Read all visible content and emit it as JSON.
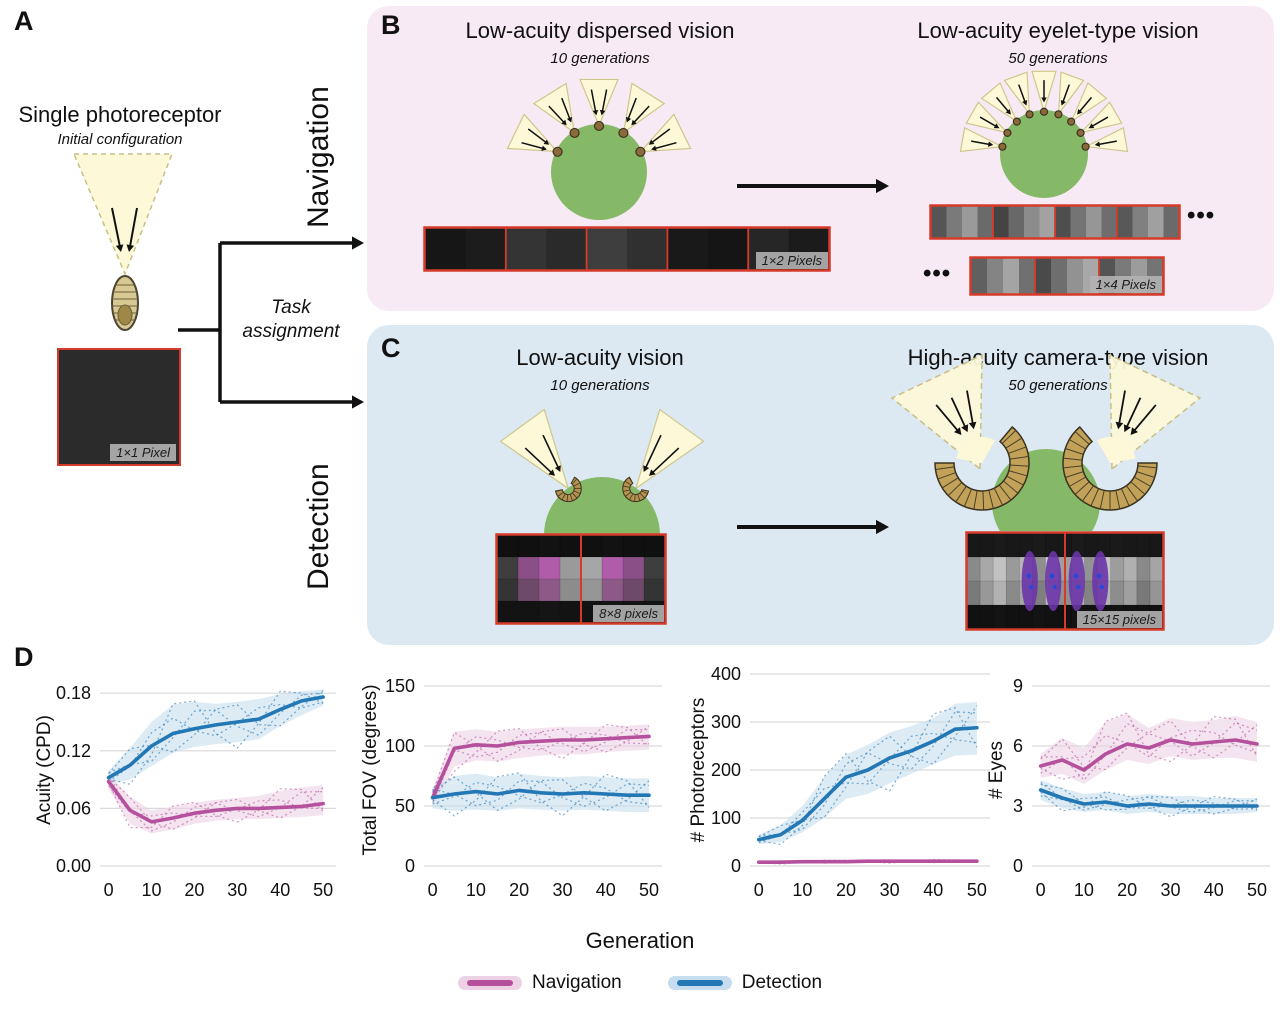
{
  "colors": {
    "navigation": "#b5519c",
    "navigation_band": "#ecd2e4",
    "detection": "#2277b4",
    "detection_band": "#c6ddef",
    "panel_b_bg": "#f8eaf4",
    "panel_c_bg": "#dce9f2",
    "organism_green": "#85b968",
    "light_cone": "#fcf8d8",
    "pixel_border_red": "#d63a2a",
    "grid_line": "#d9d9d9"
  },
  "panels": {
    "a": {
      "letter": "A",
      "title": "Single photoreceptor",
      "subtitle": "Initial configuration",
      "pixel_label": "1×1 Pixel",
      "task_label": "Task assignment"
    },
    "b": {
      "letter": "B",
      "side_label": "Navigation",
      "left": {
        "title": "Low-acuity dispersed vision",
        "subtitle": "10 generations",
        "strip": {
          "group": 2,
          "label": "1×2 Pixels",
          "cells": [
            "#161616",
            "#1c1c1c",
            "#343434",
            "#2a2a2a",
            "#3e3e3e",
            "#303030",
            "#191919",
            "#151515",
            "#262626",
            "#1b1b1b"
          ]
        }
      },
      "right": {
        "title": "Low-acuity eyelet-type vision",
        "subtitle": "50 generations",
        "ellipsis": "•••",
        "strip1": {
          "group": 4,
          "cells": [
            "#555555",
            "#7a7a7a",
            "#9a9a9a",
            "#6a6a6a",
            "#444444",
            "#686868",
            "#8c8c8c",
            "#a2a2a2",
            "#4e4e4e",
            "#747474",
            "#969696",
            "#6e6e6e",
            "#585858",
            "#808080",
            "#a0a0a0",
            "#6a6a6a"
          ]
        },
        "strip2": {
          "group": 4,
          "label": "1×4 Pixels",
          "cells": [
            "#606060",
            "#848484",
            "#a4a4a4",
            "#707070",
            "#4a4a4a",
            "#6e6e6e",
            "#929292",
            "#a8a8a8",
            "#545454",
            "#7a7a7a",
            "#9c9c9c",
            "#747474"
          ]
        }
      }
    },
    "c": {
      "letter": "C",
      "side_label": "Detection",
      "left": {
        "title": "Low-acuity vision",
        "subtitle": "10 generations",
        "pixels": {
          "label": "8×8 pixels",
          "rows": [
            [
              "#101010",
              "#101010",
              "#121212",
              "#101010",
              "#101010",
              "#121212",
              "#101010",
              "#101010"
            ],
            [
              "#3e3e3e",
              "#8a4f86",
              "#b05ca8",
              "#9a9a9a",
              "#a6a6a6",
              "#b05ca8",
              "#8a4f86",
              "#3e3e3e"
            ],
            [
              "#343434",
              "#6e4a6a",
              "#8d5a88",
              "#8c8c8c",
              "#969696",
              "#8d5a88",
              "#6e4a6a",
              "#343434"
            ],
            [
              "#131313",
              "#131313",
              "#151515",
              "#131313",
              "#131313",
              "#151515",
              "#131313",
              "#131313"
            ]
          ]
        }
      },
      "right": {
        "title": "High-acuity camera-type vision",
        "subtitle": "50 generations",
        "pixels": {
          "label": "15×15 pixels",
          "blob_fracs": [
            0.32,
            0.44,
            0.56,
            0.68
          ],
          "rows": [
            [
              "#181818",
              "#181818",
              "#1a1a1a",
              "#181818",
              "#181818",
              "#1a1a1a",
              "#181818",
              "#181818",
              "#1a1a1a",
              "#181818",
              "#181818",
              "#1a1a1a",
              "#181818",
              "#181818",
              "#181818"
            ],
            [
              "#8a8a8a",
              "#a8a8a8",
              "#c2c2c2",
              "#9a9a9a",
              "#b5b5b5",
              "#8f8f8f",
              "#c8c8c8",
              "#a0a0a0",
              "#bdbdbd",
              "#939393",
              "#c4c4c4",
              "#9d9d9d",
              "#b0b0b0",
              "#898989",
              "#a5a5a5"
            ],
            [
              "#7a7a7a",
              "#989898",
              "#b2b2b2",
              "#8a8a8a",
              "#a5a5a5",
              "#7f7f7f",
              "#b8b8b8",
              "#909090",
              "#adadad",
              "#838383",
              "#b4b4b4",
              "#8d8d8d",
              "#a0a0a0",
              "#797979",
              "#959595"
            ],
            [
              "#111111",
              "#111111",
              "#131313",
              "#111111",
              "#111111",
              "#131313",
              "#111111",
              "#111111",
              "#131313",
              "#111111",
              "#111111",
              "#131313",
              "#111111",
              "#111111",
              "#111111"
            ]
          ]
        }
      }
    },
    "d": {
      "letter": "D",
      "xlabel": "Generation"
    }
  },
  "legend": [
    {
      "label": "Navigation",
      "color_key": "navigation"
    },
    {
      "label": "Detection",
      "color_key": "detection"
    }
  ],
  "chart_data": [
    {
      "type": "line",
      "ylabel": "Acuity (CPD)",
      "x": [
        0,
        5,
        10,
        15,
        20,
        25,
        30,
        35,
        40,
        45,
        50
      ],
      "xticks": [
        0,
        10,
        20,
        30,
        40,
        50
      ],
      "xlim": [
        -2,
        53
      ],
      "ylim": [
        0,
        0.2
      ],
      "ytick_vals": [
        0,
        0.06,
        0.12,
        0.18
      ],
      "ytick_labels": [
        "0.00",
        "0.06",
        "0.12",
        "0.18"
      ],
      "series": [
        {
          "name": "Navigation",
          "color_key": "navigation",
          "values": [
            0.088,
            0.058,
            0.046,
            0.05,
            0.055,
            0.058,
            0.06,
            0.06,
            0.061,
            0.062,
            0.065
          ],
          "band_low": [
            0.08,
            0.044,
            0.034,
            0.038,
            0.044,
            0.047,
            0.049,
            0.049,
            0.05,
            0.051,
            0.053
          ],
          "band_high": [
            0.096,
            0.072,
            0.058,
            0.062,
            0.066,
            0.069,
            0.071,
            0.073,
            0.078,
            0.082,
            0.084
          ]
        },
        {
          "name": "Detection",
          "color_key": "detection",
          "values": [
            0.092,
            0.105,
            0.125,
            0.138,
            0.143,
            0.147,
            0.15,
            0.153,
            0.163,
            0.172,
            0.176
          ],
          "band_low": [
            0.085,
            0.09,
            0.104,
            0.118,
            0.124,
            0.127,
            0.129,
            0.132,
            0.146,
            0.157,
            0.167
          ],
          "band_high": [
            0.099,
            0.123,
            0.15,
            0.168,
            0.171,
            0.169,
            0.171,
            0.174,
            0.179,
            0.182,
            0.184
          ]
        }
      ]
    },
    {
      "type": "line",
      "ylabel": "Total FOV (degrees)",
      "x": [
        0,
        5,
        10,
        15,
        20,
        25,
        30,
        35,
        40,
        45,
        50
      ],
      "xticks": [
        0,
        10,
        20,
        30,
        40,
        50
      ],
      "xlim": [
        -2,
        53
      ],
      "ylim": [
        0,
        160
      ],
      "ytick_vals": [
        0,
        50,
        100,
        150
      ],
      "ytick_labels": [
        "0",
        "50",
        "100",
        "150"
      ],
      "series": [
        {
          "name": "Navigation",
          "color_key": "navigation",
          "values": [
            57,
            98,
            101,
            100,
            103,
            104,
            105,
            105,
            106,
            107,
            108
          ],
          "band_low": [
            50,
            83,
            88,
            87,
            90,
            92,
            93,
            93,
            95,
            96,
            97
          ],
          "band_high": [
            64,
            112,
            114,
            112,
            114,
            115,
            116,
            116,
            116,
            117,
            118
          ]
        },
        {
          "name": "Detection",
          "color_key": "detection",
          "values": [
            57,
            60,
            62,
            60,
            63,
            61,
            60,
            61,
            60,
            59,
            59
          ],
          "band_low": [
            48,
            46,
            47,
            46,
            48,
            47,
            46,
            47,
            46,
            45,
            45
          ],
          "band_high": [
            66,
            75,
            77,
            74,
            77,
            75,
            74,
            75,
            74,
            73,
            73
          ]
        }
      ]
    },
    {
      "type": "line",
      "ylabel": "# Photoreceptors",
      "x": [
        0,
        5,
        10,
        15,
        20,
        25,
        30,
        35,
        40,
        45,
        50
      ],
      "xticks": [
        0,
        10,
        20,
        30,
        40,
        50
      ],
      "xlim": [
        -2,
        53
      ],
      "ylim": [
        0,
        400
      ],
      "ytick_vals": [
        0,
        100,
        200,
        300,
        400
      ],
      "ytick_labels": [
        "0",
        "100",
        "200",
        "300",
        "400"
      ],
      "series": [
        {
          "name": "Detection",
          "color_key": "detection",
          "values": [
            55,
            65,
            95,
            140,
            185,
            200,
            225,
            240,
            260,
            285,
            288
          ],
          "band_low": [
            45,
            50,
            70,
            100,
            140,
            150,
            172,
            192,
            212,
            230,
            232
          ],
          "band_high": [
            65,
            85,
            125,
            185,
            232,
            252,
            278,
            292,
            308,
            338,
            342
          ]
        },
        {
          "name": "Navigation",
          "color_key": "navigation",
          "values": [
            8,
            8,
            9,
            9,
            9,
            10,
            10,
            10,
            10,
            10,
            10
          ],
          "band_low": [
            5,
            5,
            6,
            6,
            6,
            7,
            7,
            7,
            7,
            7,
            7
          ],
          "band_high": [
            11,
            11,
            12,
            12,
            12,
            13,
            13,
            13,
            13,
            13,
            13
          ]
        }
      ]
    },
    {
      "type": "line",
      "ylabel": "# Eyes",
      "x": [
        0,
        5,
        10,
        15,
        20,
        25,
        30,
        35,
        40,
        45,
        50
      ],
      "xticks": [
        0,
        10,
        20,
        30,
        40,
        50
      ],
      "xlim": [
        -2,
        53
      ],
      "ylim": [
        0,
        9.6
      ],
      "ytick_vals": [
        0,
        3,
        6,
        9
      ],
      "ytick_labels": [
        "0",
        "3",
        "6",
        "9"
      ],
      "series": [
        {
          "name": "Navigation",
          "color_key": "navigation",
          "values": [
            5.0,
            5.3,
            4.8,
            5.6,
            6.1,
            5.9,
            6.3,
            6.1,
            6.2,
            6.3,
            6.1
          ],
          "band_low": [
            4.4,
            4.6,
            4.1,
            4.8,
            5.3,
            5.1,
            5.5,
            5.3,
            5.4,
            5.4,
            5.2
          ],
          "band_high": [
            5.6,
            6.4,
            5.9,
            7.2,
            7.6,
            6.9,
            7.4,
            7.2,
            7.3,
            7.5,
            7.2
          ]
        },
        {
          "name": "Detection",
          "color_key": "detection",
          "values": [
            3.8,
            3.4,
            3.1,
            3.2,
            3.0,
            3.1,
            3.0,
            3.0,
            3.0,
            3.0,
            3.0
          ],
          "band_low": [
            3.3,
            2.9,
            2.7,
            2.8,
            2.6,
            2.7,
            2.6,
            2.6,
            2.6,
            2.6,
            2.7
          ],
          "band_high": [
            4.3,
            3.9,
            3.6,
            3.7,
            3.5,
            3.6,
            3.5,
            3.5,
            3.4,
            3.4,
            3.4
          ]
        }
      ]
    }
  ]
}
